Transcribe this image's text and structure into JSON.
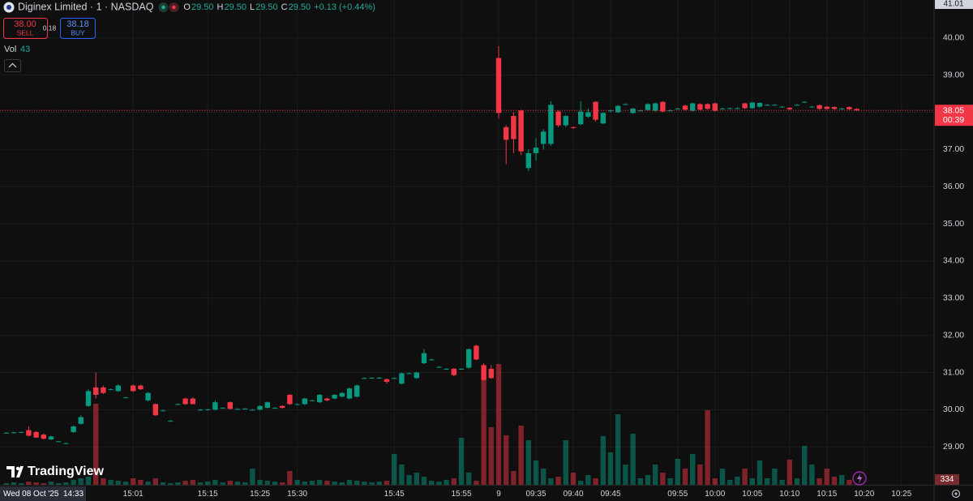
{
  "chart_data": {
    "type": "candlestick",
    "title": "Diginex Limited · 1 · NASDAQ",
    "ohlc_legend": [
      {
        "label": "O",
        "value": "29.50"
      },
      {
        "label": "H",
        "value": "29.50"
      },
      {
        "label": "L",
        "value": "29.50"
      },
      {
        "label": "C",
        "value": "29.50"
      }
    ],
    "change": "+0.13",
    "change_pct": "(+0.44%)",
    "trade": {
      "sell_price": "38.00",
      "sell_label": "SELL",
      "spread": 0.18,
      "buy_price": "38.18",
      "buy_label": "BUY"
    },
    "volume_label": "Vol",
    "logo": "TradingView",
    "crosshair_date": "Wed 08 Oct '25",
    "crosshair_time": "14:33",
    "top_price_label": 41.01,
    "countdown": "00:39",
    "volume_axis_label": 334,
    "up_color": "#089981",
    "down_color": "#f23645",
    "grid": true,
    "ylim": [
      27.98,
      41.02
    ],
    "yticks": [
      {
        "value": 29,
        "label": "29.00"
      },
      {
        "value": 30,
        "label": "30.00"
      },
      {
        "value": 31,
        "label": "31.00"
      },
      {
        "value": 32,
        "label": "32.00"
      },
      {
        "value": 33,
        "label": "33.00"
      },
      {
        "value": 34,
        "label": "34.00"
      },
      {
        "value": 35,
        "label": "35.00"
      },
      {
        "value": 36,
        "label": "36.00"
      },
      {
        "value": 37,
        "label": "37.00"
      },
      {
        "value": 38,
        "label": "38.00"
      },
      {
        "value": 39,
        "label": "39.00"
      },
      {
        "value": 40,
        "label": "40.00"
      }
    ],
    "categories": [
      null,
      null,
      null,
      null,
      null,
      null,
      null,
      null,
      null,
      null,
      null,
      null,
      null,
      null,
      null,
      null,
      null,
      "15:01",
      null,
      null,
      null,
      null,
      null,
      null,
      null,
      null,
      null,
      "15:15",
      null,
      null,
      null,
      null,
      null,
      null,
      "15:25",
      null,
      null,
      null,
      null,
      "15:30",
      null,
      null,
      null,
      null,
      null,
      null,
      null,
      null,
      null,
      null,
      null,
      null,
      "15:45",
      null,
      null,
      null,
      null,
      null,
      null,
      null,
      null,
      "15:55",
      null,
      null,
      null,
      null,
      "9",
      null,
      null,
      null,
      null,
      "09:35",
      null,
      null,
      null,
      null,
      "09:40",
      null,
      null,
      null,
      null,
      "09:45",
      null,
      null,
      null,
      null,
      null,
      null,
      null,
      null,
      "09:55",
      null,
      null,
      null,
      null,
      "10:00",
      null,
      null,
      null,
      null,
      "10:05",
      null,
      null,
      null,
      null,
      "10:10",
      null,
      null,
      null,
      null,
      "10:15",
      null,
      null,
      null,
      null,
      "10:20",
      null,
      null,
      null,
      null,
      "10:25"
    ],
    "open": [
      29.38,
      29.38,
      29.39,
      29.45,
      29.4,
      29.33,
      29.2,
      29.15,
      29.1,
      29.4,
      29.62,
      30.1,
      30.6,
      30.6,
      30.55,
      30.5,
      30.33,
      30.65,
      30.65,
      30.25,
      30.15,
      29.98,
      29.7,
      30.15,
      30.3,
      30.3,
      30.0,
      30.0,
      30.0,
      30.05,
      30.2,
      30.02,
      30.02,
      30.0,
      30.0,
      30.05,
      30.05,
      30.1,
      30.4,
      30.15,
      30.15,
      30.25,
      30.2,
      30.3,
      30.3,
      30.35,
      30.3,
      30.35,
      30.85,
      30.85,
      30.86,
      30.82,
      30.85,
      30.7,
      30.98,
      30.85,
      31.25,
      31.35,
      31.15,
      31.1,
      31.1,
      31.1,
      31.13,
      31.72,
      31.2,
      31.1,
      39.46,
      37.6,
      37.9,
      38.05,
      36.5,
      36.9,
      37.15,
      37.15,
      38.02,
      37.65,
      37.6,
      37.68,
      37.88,
      38.28,
      37.7,
      38.03,
      38.0,
      38.22,
      37.98,
      38.05,
      38.06,
      38.04,
      38.28,
      38.05,
      38.1,
      38.18,
      38.04,
      38.22,
      38.22,
      38.24,
      38.1,
      38.1,
      38.11,
      38.24,
      38.11,
      38.15,
      38.2,
      38.2,
      38.15,
      38.12,
      38.2,
      38.28,
      38.15,
      38.19,
      38.15,
      38.14,
      38.1,
      38.14,
      38.09,
      null,
      null,
      null,
      null,
      null,
      null
    ],
    "high": [
      29.4,
      29.4,
      29.41,
      29.55,
      29.42,
      29.36,
      29.3,
      29.16,
      29.12,
      29.58,
      29.85,
      30.55,
      31.0,
      30.65,
      30.57,
      30.68,
      30.35,
      30.68,
      30.67,
      30.48,
      30.17,
      30.0,
      29.72,
      30.17,
      30.32,
      30.33,
      30.02,
      30.02,
      30.25,
      30.07,
      30.22,
      30.04,
      30.04,
      30.02,
      30.12,
      30.22,
      30.07,
      30.12,
      30.42,
      30.17,
      30.32,
      30.27,
      30.42,
      30.32,
      30.42,
      30.47,
      30.6,
      30.68,
      30.87,
      30.87,
      30.88,
      30.84,
      30.87,
      31.0,
      31.0,
      31.02,
      31.63,
      31.37,
      31.17,
      31.12,
      31.12,
      31.12,
      31.65,
      31.75,
      31.25,
      31.2,
      39.78,
      37.65,
      38.0,
      38.07,
      37.0,
      37.3,
      37.55,
      38.3,
      38.05,
      37.92,
      37.62,
      38.3,
      38.1,
      38.3,
      38.0,
      38.07,
      38.2,
      38.24,
      38.12,
      38.07,
      38.24,
      38.26,
      38.3,
      38.07,
      38.12,
      38.2,
      38.26,
      38.24,
      38.24,
      38.26,
      38.12,
      38.12,
      38.13,
      38.26,
      38.28,
      38.27,
      38.22,
      38.22,
      38.17,
      38.14,
      38.22,
      38.3,
      38.17,
      38.21,
      38.17,
      38.16,
      38.12,
      38.16,
      38.11,
      null,
      null,
      null,
      null,
      null,
      null
    ],
    "low": [
      29.36,
      29.36,
      29.37,
      29.28,
      29.24,
      29.2,
      29.18,
      29.14,
      29.08,
      29.38,
      29.6,
      30.08,
      30.3,
      30.42,
      30.53,
      30.48,
      30.31,
      30.48,
      30.53,
      30.22,
      29.83,
      29.96,
      29.68,
      30.13,
      30.13,
      30.14,
      29.98,
      29.98,
      29.98,
      30.03,
      30.0,
      30.0,
      30.0,
      29.98,
      29.98,
      30.03,
      30.03,
      30.03,
      30.13,
      30.13,
      30.13,
      30.23,
      30.18,
      30.23,
      30.28,
      30.33,
      30.28,
      30.33,
      30.83,
      30.83,
      30.84,
      30.7,
      30.83,
      30.68,
      30.96,
      30.83,
      31.23,
      31.33,
      31.13,
      31.08,
      30.9,
      31.08,
      31.1,
      31.33,
      30.78,
      30.83,
      37.83,
      36.6,
      36.9,
      36.85,
      36.42,
      36.7,
      37.0,
      37.1,
      37.6,
      37.6,
      37.55,
      37.65,
      37.85,
      37.75,
      37.68,
      38.0,
      37.98,
      38.2,
      37.96,
      38.03,
      38.04,
      38.02,
      38.0,
      38.03,
      38.08,
      38.05,
      38.02,
      38.05,
      38.07,
      38.02,
      38.08,
      38.08,
      38.09,
      38.09,
      38.09,
      38.13,
      38.18,
      38.18,
      38.13,
      38.06,
      38.18,
      38.26,
      38.13,
      38.07,
      38.07,
      38.07,
      38.08,
      38.06,
      38.03,
      null,
      null,
      null,
      null,
      null,
      null
    ],
    "close": [
      29.38,
      29.39,
      29.4,
      29.3,
      29.25,
      29.22,
      29.28,
      29.15,
      29.1,
      29.55,
      29.8,
      30.5,
      30.4,
      30.45,
      30.55,
      30.65,
      30.33,
      30.5,
      30.55,
      30.45,
      29.85,
      29.98,
      29.7,
      30.15,
      30.15,
      30.15,
      30.0,
      30.01,
      30.2,
      30.05,
      30.02,
      30.02,
      30.03,
      30.0,
      30.1,
      30.2,
      30.05,
      30.05,
      30.15,
      30.15,
      30.3,
      30.25,
      30.4,
      30.25,
      30.4,
      30.45,
      30.57,
      30.65,
      30.85,
      30.86,
      30.86,
      30.75,
      30.85,
      30.98,
      30.98,
      31.0,
      31.52,
      31.35,
      31.15,
      31.1,
      30.93,
      31.1,
      31.63,
      31.35,
      30.8,
      30.85,
      37.98,
      37.26,
      37.28,
      36.95,
      36.9,
      37.05,
      37.48,
      38.2,
      37.65,
      37.9,
      37.58,
      38.02,
      38.0,
      37.8,
      37.98,
      38.05,
      38.17,
      38.22,
      38.1,
      38.05,
      38.22,
      38.24,
      38.02,
      38.05,
      38.1,
      38.07,
      38.24,
      38.07,
      38.09,
      38.04,
      38.1,
      38.11,
      38.11,
      38.11,
      38.26,
      38.25,
      38.2,
      38.2,
      38.15,
      38.08,
      38.2,
      38.28,
      38.15,
      38.09,
      38.09,
      38.09,
      38.1,
      38.08,
      38.05,
      null,
      null,
      null,
      null,
      null,
      null
    ],
    "volume": [
      110,
      165,
      110,
      220,
      165,
      110,
      220,
      110,
      165,
      330,
      440,
      550,
      5500,
      440,
      330,
      275,
      220,
      440,
      330,
      220,
      440,
      165,
      110,
      165,
      275,
      330,
      165,
      220,
      330,
      165,
      275,
      220,
      165,
      1100,
      330,
      275,
      220,
      165,
      935,
      330,
      220,
      275,
      330,
      275,
      220,
      165,
      330,
      275,
      220,
      165,
      220,
      275,
      2090,
      1375,
      660,
      825,
      550,
      275,
      220,
      330,
      440,
      3190,
      825,
      275,
      7480,
      3905,
      8195,
      3355,
      935,
      4015,
      3025,
      1650,
      1100,
      440,
      550,
      3025,
      825,
      275,
      660,
      440,
      3300,
      2200,
      4785,
      1375,
      3465,
      440,
      660,
      1375,
      825,
      440,
      1760,
      1100,
      2090,
      1375,
      5060,
      440,
      1100,
      330,
      550,
      1100,
      440,
      1650,
      440,
      1100,
      330,
      1705,
      440,
      2640,
      1375,
      440,
      1100,
      550,
      660,
      330,
      43,
      null,
      null,
      null,
      null,
      null,
      null
    ]
  }
}
